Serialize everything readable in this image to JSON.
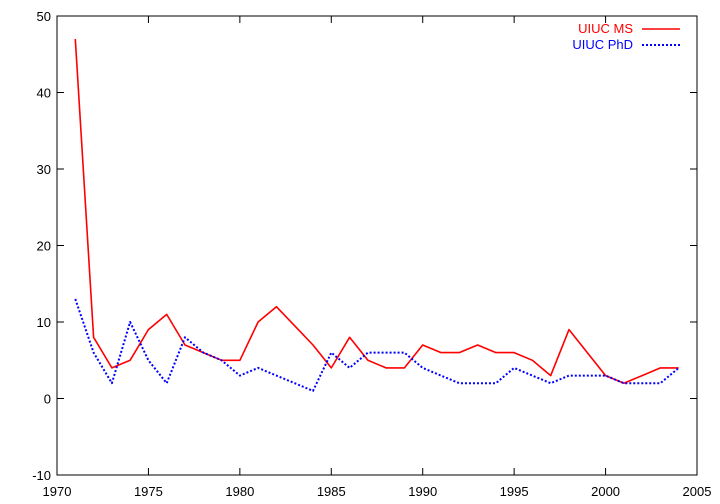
{
  "chart_data": {
    "type": "line",
    "title": "",
    "xlabel": "",
    "ylabel": "",
    "xlim": [
      1970,
      2005
    ],
    "ylim": [
      -10,
      50
    ],
    "xticks": [
      1970,
      1975,
      1980,
      1985,
      1990,
      1995,
      2000,
      2005
    ],
    "yticks": [
      -10,
      0,
      10,
      20,
      30,
      40,
      50
    ],
    "grid": false,
    "legend": "top-right",
    "series": [
      {
        "name": "UIUC MS",
        "color": "#ff0000",
        "style": "solid",
        "x": [
          1971,
          1972,
          1973,
          1974,
          1975,
          1976,
          1977,
          1978,
          1979,
          1980,
          1981,
          1982,
          1983,
          1984,
          1985,
          1986,
          1987,
          1988,
          1989,
          1990,
          1991,
          1992,
          1993,
          1994,
          1995,
          1996,
          1997,
          1998,
          1999,
          2000,
          2001,
          2002,
          2003,
          2004
        ],
        "values": [
          47,
          8,
          4,
          5,
          9,
          11,
          7,
          6,
          5,
          5,
          10,
          12,
          9.5,
          7,
          4,
          8,
          5,
          4,
          4,
          7,
          6,
          6,
          7,
          6,
          6,
          5,
          3,
          9,
          6,
          3,
          2,
          3,
          4,
          4
        ]
      },
      {
        "name": "UIUC PhD",
        "color": "#0000ff",
        "style": "dotted",
        "x": [
          1971,
          1972,
          1973,
          1974,
          1975,
          1976,
          1977,
          1978,
          1979,
          1980,
          1981,
          1982,
          1983,
          1984,
          1985,
          1986,
          1987,
          1988,
          1989,
          1990,
          1991,
          1992,
          1993,
          1994,
          1995,
          1996,
          1997,
          1998,
          1999,
          2000,
          2001,
          2002,
          2003,
          2004
        ],
        "values": [
          13,
          6,
          2,
          10,
          5,
          2,
          8,
          6,
          5,
          3,
          4,
          3,
          2,
          1,
          6,
          4,
          6,
          6,
          6,
          4,
          3,
          2,
          2,
          2,
          4,
          3,
          2,
          3,
          3,
          3,
          2,
          2,
          2,
          4
        ]
      }
    ]
  }
}
